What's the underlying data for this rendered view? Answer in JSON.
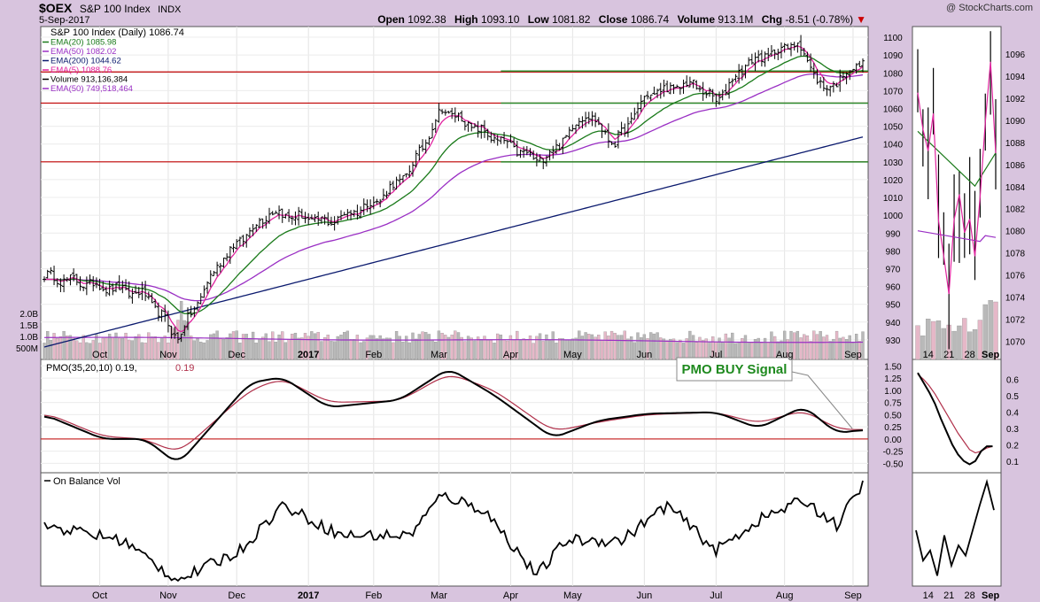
{
  "header": {
    "symbol": "$OEX",
    "name": "S&P 100 Index",
    "exchange": "INDX",
    "date": "5-Sep-2017",
    "brand": "@ StockCharts.com",
    "open_label": "Open",
    "open": "1092.38",
    "high_label": "High",
    "high": "1093.10",
    "low_label": "Low",
    "low": "1081.82",
    "close_label": "Close",
    "close": "1086.74",
    "volume_label": "Volume",
    "volume": "913.1M",
    "chg_label": "Chg",
    "chg": "-8.51 (-0.78%)"
  },
  "legend": [
    {
      "text": "S&P 100 Index (Daily) 1086.74",
      "color": "#000000"
    },
    {
      "text": "EMA(20) 1085.98",
      "color": "#1a7a1a"
    },
    {
      "text": "EMA(50) 1082.02",
      "color": "#9a2fc4"
    },
    {
      "text": "EMA(200) 1044.62",
      "color": "#0b1a6e"
    },
    {
      "text": "EMA(5) 1088.76",
      "color": "#e0249f"
    },
    {
      "text": "Volume 913,136,384",
      "color": "#000000"
    },
    {
      "text": "EMA(50) 749,518,464",
      "color": "#9a2fc4"
    }
  ],
  "pmo_legend": {
    "label": "PMO(35,20,10)",
    "value1": "0.19",
    "value2": "0.19"
  },
  "obv_legend": "On Balance Vol",
  "annotation": "PMO BUY Signal",
  "colors": {
    "price": "#000000",
    "ema5": "#e0249f",
    "ema20": "#1a7a1a",
    "ema50": "#9a2fc4",
    "ema200": "#0b1a6e",
    "resistance": "#c00000",
    "support": "#2c8a2c",
    "pmo": "#000000",
    "pmo_signal": "#b0304a",
    "vol_up": "#b9b9b9",
    "vol_down": "#e6b8c8"
  },
  "chart_data": [
    {
      "type": "line",
      "title": "S&P 100 Index (Daily)",
      "x": [
        "2017-09-05"
      ],
      "x_ticks": [
        "Oct",
        "Nov",
        "Dec",
        "2017",
        "Feb",
        "Mar",
        "Apr",
        "May",
        "Jun",
        "Jul",
        "Aug",
        "Sep"
      ],
      "y_ticks": [
        930,
        940,
        950,
        960,
        970,
        980,
        990,
        1000,
        1010,
        1020,
        1030,
        1040,
        1050,
        1060,
        1070,
        1080,
        1090,
        1100
      ],
      "ylim": [
        922,
        1104
      ],
      "key_points": {
        "x": [
          "Sep-06",
          "Oct-01",
          "Oct-20",
          "Nov-04",
          "Nov-22",
          "Dec-15",
          "Jan-10",
          "Feb-01",
          "Feb-15",
          "Mar-01",
          "Mar-15",
          "Apr-12",
          "Apr-20",
          "May-05",
          "May-17",
          "Jun-01",
          "Jun-22",
          "Jul-01",
          "Jul-15",
          "Aug-07",
          "Aug-18",
          "Sep-05"
        ],
        "close": [
          966,
          960,
          955,
          931,
          975,
          1002,
          996,
          1008,
          1025,
          1060,
          1050,
          1031,
          1036,
          1058,
          1040,
          1068,
          1074,
          1064,
          1085,
          1097,
          1070,
          1087
        ]
      },
      "horizontal_lines": [
        {
          "value": 1080.5,
          "color": "#c00000"
        },
        {
          "value": 1063,
          "color": "#c00000"
        },
        {
          "value": 1030,
          "color": "#c00000"
        },
        {
          "value": 1081,
          "color": "#2c8a2c"
        },
        {
          "value": 1063,
          "color": "#2c8a2c"
        },
        {
          "value": 1030,
          "color": "#2c8a2c"
        }
      ],
      "volume_ticks": [
        "500M",
        "1.0B",
        "1.5B",
        "2.0B"
      ]
    },
    {
      "type": "line",
      "title": "PMO(35,20,10)",
      "y_ticks": [
        -0.5,
        -0.25,
        0,
        0.25,
        0.5,
        0.75,
        1.0,
        1.25,
        1.5
      ],
      "ylim": [
        -0.62,
        1.56
      ],
      "key_points": {
        "x": [
          "Sep-06",
          "Oct-01",
          "Oct-20",
          "Nov-04",
          "Dec-05",
          "Dec-20",
          "Jan-10",
          "Feb-10",
          "Mar-05",
          "Mar-25",
          "Apr-20",
          "May-10",
          "Jun-01",
          "Jul-01",
          "Jul-20",
          "Aug-10",
          "Aug-25",
          "Sep-05"
        ],
        "pmo": [
          0.5,
          0.0,
          0.0,
          -0.52,
          1.15,
          1.27,
          0.65,
          0.8,
          1.45,
          0.9,
          0.02,
          0.38,
          0.52,
          0.55,
          0.22,
          0.67,
          0.12,
          0.19
        ],
        "signal": [
          0.55,
          0.05,
          0.0,
          -0.3,
          1.0,
          1.25,
          0.75,
          0.78,
          1.35,
          1.0,
          0.15,
          0.35,
          0.5,
          0.55,
          0.32,
          0.6,
          0.2,
          0.19
        ]
      }
    },
    {
      "type": "line",
      "title": "On Balance Vol",
      "key_points": {
        "x": [
          "Sep-06",
          "Oct-10",
          "Nov-04",
          "Dec-01",
          "Dec-20",
          "Jan-15",
          "Feb-15",
          "Mar-01",
          "Mar-20",
          "Apr-12",
          "Apr-25",
          "May-20",
          "Jun-10",
          "Jul-01",
          "Jul-20",
          "Aug-10",
          "Aug-25",
          "Sep-05"
        ],
        "obv": [
          0.55,
          0.4,
          0.0,
          0.3,
          0.75,
          0.45,
          0.45,
          0.85,
          0.7,
          0.05,
          0.4,
          0.4,
          0.75,
          0.3,
          0.6,
          0.8,
          0.55,
          0.95
        ]
      }
    }
  ],
  "zoom_chart": {
    "x_ticks": [
      "14",
      "21",
      "28",
      "Sep"
    ],
    "y_ticks": [
      1070,
      1072,
      1074,
      1076,
      1078,
      1080,
      1082,
      1084,
      1086,
      1088,
      1090,
      1092,
      1094,
      1096
    ],
    "ylim": [
      1069,
      1098
    ],
    "pmo_ticks": [
      0.1,
      0.2,
      0.3,
      0.4,
      0.5,
      0.6
    ],
    "pmo_ylim": [
      0.05,
      0.7
    ]
  }
}
